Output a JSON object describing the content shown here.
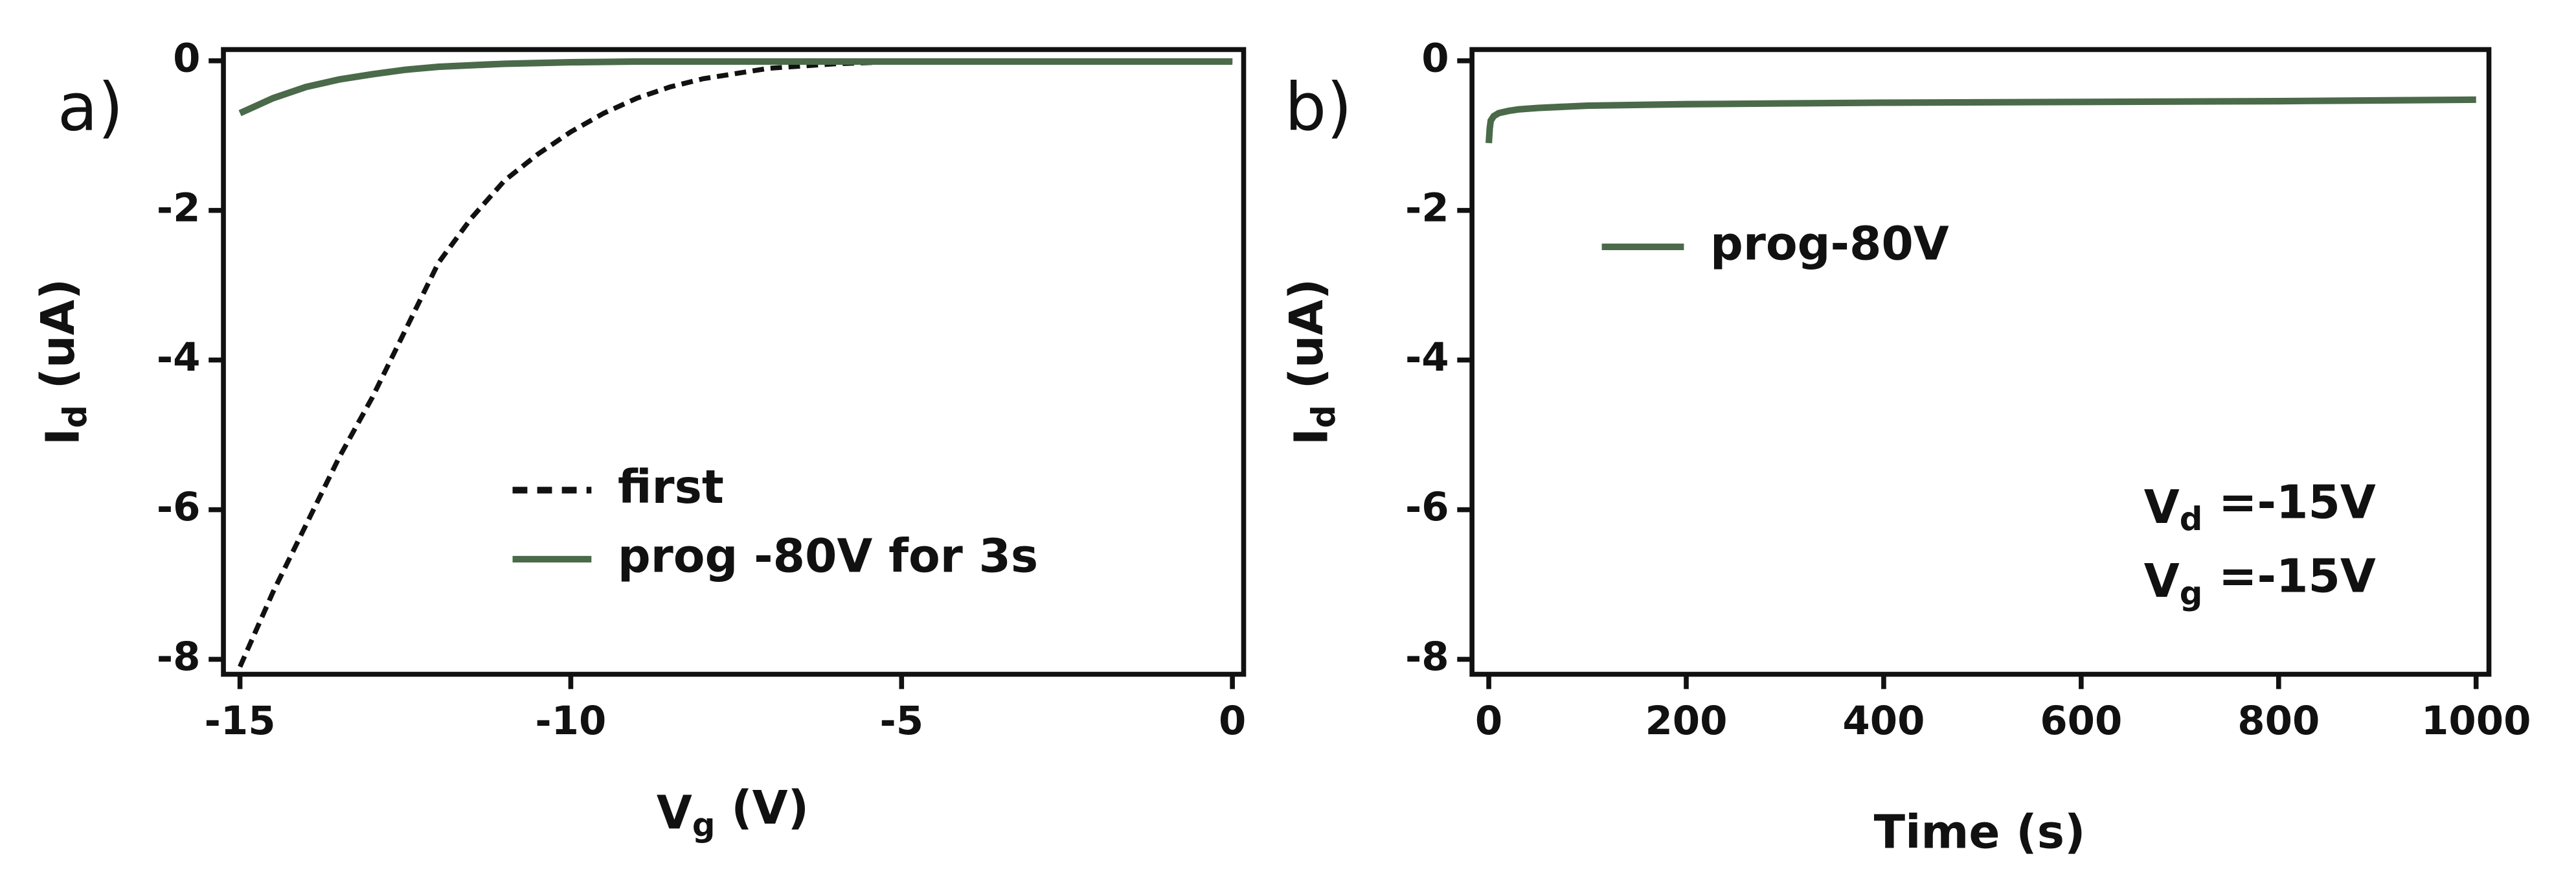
{
  "chart_data": [
    {
      "type": "line",
      "panel_label": "a)",
      "xlabel": [
        "V",
        "g",
        " (V)"
      ],
      "ylabel": [
        "I",
        "d",
        " (uA)"
      ],
      "x": [
        -15,
        -14.5,
        -14,
        -13.5,
        -13,
        -12.5,
        -12,
        -11.5,
        -11,
        -10.5,
        -10,
        -9.5,
        -9,
        -8.5,
        -8,
        -7,
        -6,
        -5,
        -4,
        -3,
        -2,
        -1,
        0
      ],
      "series": [
        {
          "name": "first",
          "color": "#111111",
          "dash": true,
          "values": [
            -8.1,
            -7.1,
            -6.2,
            -5.3,
            -4.5,
            -3.6,
            -2.7,
            -2.1,
            -1.6,
            -1.25,
            -0.95,
            -0.7,
            -0.5,
            -0.35,
            -0.24,
            -0.1,
            -0.04,
            -0.01,
            0,
            0,
            0,
            0,
            0
          ]
        },
        {
          "name": "prog -80V for 3s",
          "color": "#4a6a4a",
          "dash": false,
          "values": [
            -0.7,
            -0.5,
            -0.35,
            -0.25,
            -0.18,
            -0.12,
            -0.08,
            -0.06,
            -0.04,
            -0.03,
            -0.02,
            -0.015,
            -0.01,
            -0.01,
            -0.01,
            -0.01,
            -0.01,
            -0.01,
            -0.01,
            -0.01,
            -0.01,
            -0.01,
            -0.01
          ]
        }
      ],
      "xlim": [
        -15.25,
        0.17
      ],
      "ylim": [
        -8.2,
        0.15
      ],
      "xticks": [
        -15,
        -10,
        -5,
        0
      ],
      "yticks": [
        -8,
        -6,
        -4,
        -2,
        0
      ]
    },
    {
      "type": "line",
      "panel_label": "b)",
      "xlabel": "Time (s)",
      "ylabel": [
        "I",
        "d",
        " (uA)"
      ],
      "x": [
        0,
        1,
        2,
        5,
        10,
        20,
        30,
        50,
        100,
        200,
        300,
        400,
        600,
        800,
        1000
      ],
      "series": [
        {
          "name": "prog-80V",
          "color": "#4a6a4a",
          "dash": false,
          "values": [
            -1.1,
            -0.9,
            -0.8,
            -0.74,
            -0.7,
            -0.67,
            -0.65,
            -0.63,
            -0.6,
            -0.58,
            -0.57,
            -0.56,
            -0.55,
            -0.54,
            -0.52
          ]
        }
      ],
      "annotations": [
        [
          "V",
          "d",
          " =-15V"
        ],
        [
          "V",
          "g",
          " =-15V"
        ]
      ],
      "xlim": [
        -17,
        1013
      ],
      "ylim": [
        -8.2,
        0.15
      ],
      "xticks": [
        0,
        200,
        400,
        600,
        800,
        1000
      ],
      "yticks": [
        -8,
        -6,
        -4,
        -2,
        0
      ]
    }
  ]
}
